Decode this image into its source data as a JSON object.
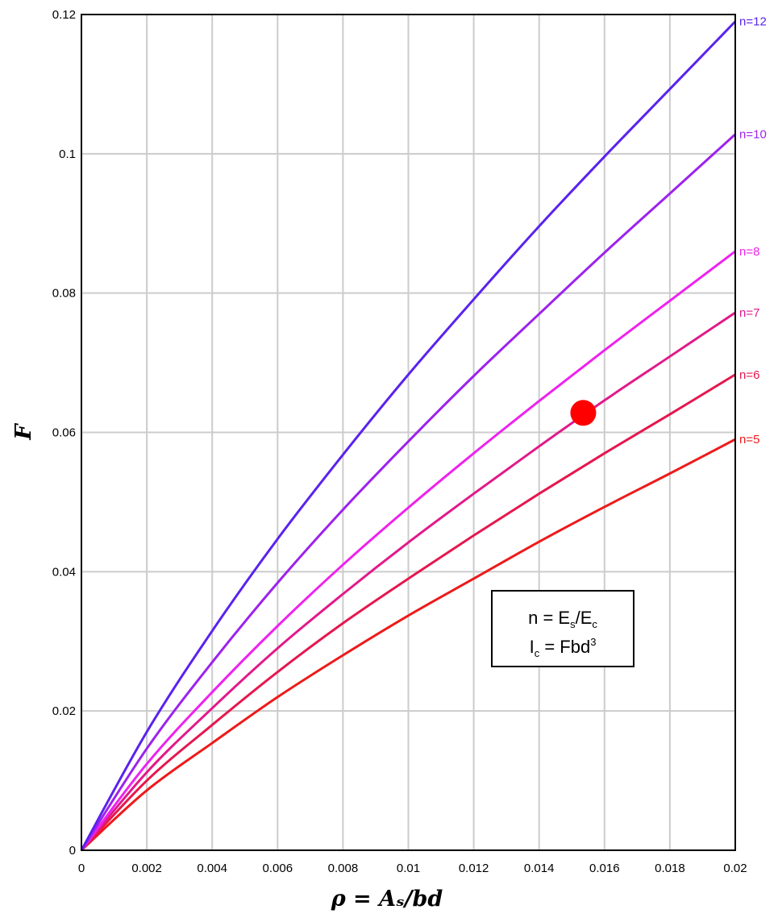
{
  "chart_data": {
    "type": "line",
    "title": "",
    "xlabel": "ρ = Aₛ/bd",
    "ylabel": "F",
    "xlim": [
      0,
      0.02
    ],
    "ylim": [
      0,
      0.12
    ],
    "grid": true,
    "x_ticks": [
      0,
      0.002,
      0.004,
      0.006,
      0.008,
      0.01,
      0.012,
      0.014,
      0.016,
      0.018,
      0.02
    ],
    "x_tick_labels": [
      "0",
      "0.002",
      "0.004",
      "0.006",
      "0.008",
      "0.01",
      "0.012",
      "0.014",
      "0.016",
      "0.018",
      "0.02"
    ],
    "y_ticks": [
      0,
      0.02,
      0.04,
      0.06,
      0.08,
      0.1,
      0.12
    ],
    "y_tick_labels": [
      "0",
      "0.02",
      "0.04",
      "0.06",
      "0.08",
      "0.1",
      "0.12"
    ],
    "x": [
      0,
      0.002,
      0.004,
      0.006,
      0.008,
      0.01,
      0.012,
      0.014,
      0.016,
      0.018,
      0.02
    ],
    "series": [
      {
        "name": "n=5",
        "color": "#ee1a1a",
        "values": [
          0,
          0.0086,
          0.0154,
          0.022,
          0.028,
          0.0337,
          0.039,
          0.0443,
          0.0493,
          0.0541,
          0.059
        ]
      },
      {
        "name": "n=6",
        "color": "#e6174e",
        "values": [
          0,
          0.01,
          0.018,
          0.0256,
          0.0326,
          0.039,
          0.0452,
          0.0512,
          0.057,
          0.0626,
          0.0683
        ]
      },
      {
        "name": "n=7",
        "color": "#e2198a",
        "values": [
          0,
          0.0112,
          0.0204,
          0.029,
          0.0368,
          0.0442,
          0.0512,
          0.058,
          0.0646,
          0.0709,
          0.0772
        ]
      },
      {
        "name": "n=8",
        "color": "#ee22ee",
        "values": [
          0,
          0.0124,
          0.0227,
          0.0322,
          0.041,
          0.0492,
          0.057,
          0.0645,
          0.0718,
          0.0789,
          0.086
        ]
      },
      {
        "name": "n=10",
        "color": "#9d22ee",
        "values": [
          0,
          0.0146,
          0.027,
          0.0384,
          0.0489,
          0.0587,
          0.0681,
          0.077,
          0.0858,
          0.0943,
          0.1028
        ]
      },
      {
        "name": "n=12",
        "color": "#5a22ee",
        "values": [
          0,
          0.017,
          0.0315,
          0.0447,
          0.0568,
          0.0683,
          0.0791,
          0.0896,
          0.0996,
          0.1093,
          0.119
        ]
      }
    ],
    "highlight_point": {
      "x": 0.01535,
      "y": 0.0628,
      "color": "#ff0000"
    },
    "legend_box": {
      "line1": {
        "main": "n = E",
        "sub1": "s",
        "mid": "/E",
        "sub2": "c"
      },
      "line2": {
        "main": "I",
        "sub1": "c",
        "mid": " = Fbd",
        "sup": "3"
      }
    }
  }
}
